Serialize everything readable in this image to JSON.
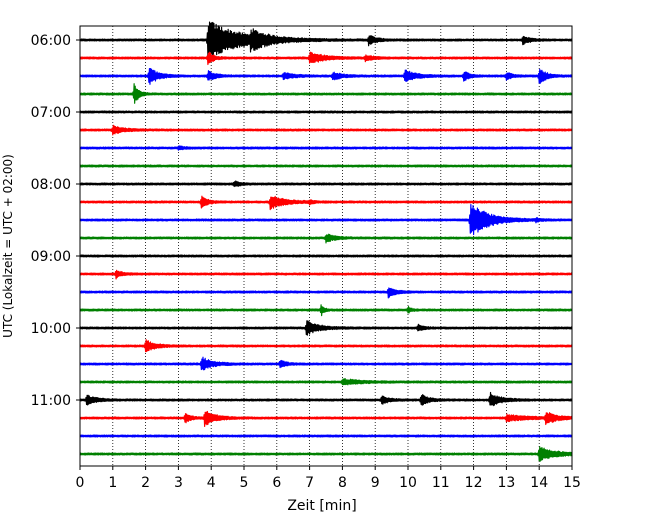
{
  "chart_data": {
    "type": "line",
    "title": "",
    "xlabel": "Zeit  [min]",
    "ylabel": "UTC (Lokalzeit = UTC + 02:00)",
    "xlim": [
      0,
      15
    ],
    "x_ticks": [
      0,
      1,
      2,
      3,
      4,
      5,
      6,
      7,
      8,
      9,
      10,
      11,
      12,
      13,
      14,
      15
    ],
    "x_grid": "vertical dotted",
    "y_tick_labels": [
      "06:00",
      "07:00",
      "08:00",
      "09:00",
      "10:00",
      "11:00"
    ],
    "trace_interval_minutes": 15,
    "trace_colors": [
      "#000000",
      "#ff0000",
      "#0000ff",
      "#008000"
    ],
    "traces": [
      {
        "start": "06:00",
        "events": [
          {
            "t": 3.9,
            "amp": 1.0,
            "dur": 1.8
          },
          {
            "t": 5.2,
            "amp": 0.35,
            "dur": 1.0
          },
          {
            "t": 8.8,
            "amp": 0.25,
            "dur": 0.4
          },
          {
            "t": 13.5,
            "amp": 0.2,
            "dur": 0.4
          }
        ]
      },
      {
        "start": "06:15",
        "events": [
          {
            "t": 3.9,
            "amp": 0.35,
            "dur": 0.3
          },
          {
            "t": 7.0,
            "amp": 0.3,
            "dur": 0.8
          },
          {
            "t": 8.7,
            "amp": 0.15,
            "dur": 0.4
          }
        ]
      },
      {
        "start": "06:30",
        "events": [
          {
            "t": 2.1,
            "amp": 0.45,
            "dur": 0.5
          },
          {
            "t": 3.9,
            "amp": 0.25,
            "dur": 0.4
          },
          {
            "t": 6.2,
            "amp": 0.15,
            "dur": 0.6
          },
          {
            "t": 7.7,
            "amp": 0.2,
            "dur": 0.5
          },
          {
            "t": 9.9,
            "amp": 0.3,
            "dur": 0.6
          },
          {
            "t": 11.7,
            "amp": 0.25,
            "dur": 0.3
          },
          {
            "t": 13.0,
            "amp": 0.2,
            "dur": 0.3
          },
          {
            "t": 14.0,
            "amp": 0.4,
            "dur": 0.4
          }
        ]
      },
      {
        "start": "06:45",
        "events": [
          {
            "t": 1.65,
            "amp": 0.55,
            "dur": 0.25
          }
        ]
      },
      {
        "start": "07:00",
        "events": []
      },
      {
        "start": "07:15",
        "events": [
          {
            "t": 1.0,
            "amp": 0.2,
            "dur": 0.6
          }
        ]
      },
      {
        "start": "07:30",
        "events": [
          {
            "t": 3.0,
            "amp": 0.08,
            "dur": 0.3
          }
        ]
      },
      {
        "start": "07:45",
        "events": []
      },
      {
        "start": "08:00",
        "events": [
          {
            "t": 4.7,
            "amp": 0.15,
            "dur": 0.3
          }
        ]
      },
      {
        "start": "08:15",
        "events": [
          {
            "t": 3.7,
            "amp": 0.35,
            "dur": 0.3
          },
          {
            "t": 5.8,
            "amp": 0.35,
            "dur": 0.8
          },
          {
            "t": 7.0,
            "amp": 0.12,
            "dur": 0.2
          }
        ]
      },
      {
        "start": "08:30",
        "events": [
          {
            "t": 11.9,
            "amp": 0.9,
            "dur": 1.0
          },
          {
            "t": 13.9,
            "amp": 0.08,
            "dur": 0.2
          }
        ]
      },
      {
        "start": "08:45",
        "events": [
          {
            "t": 7.5,
            "amp": 0.2,
            "dur": 0.5
          }
        ]
      },
      {
        "start": "09:00",
        "events": []
      },
      {
        "start": "09:15",
        "events": [
          {
            "t": 1.1,
            "amp": 0.2,
            "dur": 0.3
          }
        ]
      },
      {
        "start": "09:30",
        "events": [
          {
            "t": 9.4,
            "amp": 0.25,
            "dur": 0.4
          }
        ]
      },
      {
        "start": "09:45",
        "events": [
          {
            "t": 7.35,
            "amp": 0.3,
            "dur": 0.15
          },
          {
            "t": 10.0,
            "amp": 0.15,
            "dur": 0.2
          }
        ]
      },
      {
        "start": "10:00",
        "events": [
          {
            "t": 6.9,
            "amp": 0.35,
            "dur": 0.7
          },
          {
            "t": 10.3,
            "amp": 0.15,
            "dur": 0.3
          }
        ]
      },
      {
        "start": "10:15",
        "events": [
          {
            "t": 2.0,
            "amp": 0.3,
            "dur": 0.5
          }
        ]
      },
      {
        "start": "10:30",
        "events": [
          {
            "t": 3.7,
            "amp": 0.35,
            "dur": 0.6
          },
          {
            "t": 6.1,
            "amp": 0.2,
            "dur": 0.3
          }
        ]
      },
      {
        "start": "10:45",
        "events": [
          {
            "t": 8.0,
            "amp": 0.15,
            "dur": 1.0
          }
        ]
      },
      {
        "start": "11:00",
        "events": [
          {
            "t": 0.2,
            "amp": 0.25,
            "dur": 0.5
          },
          {
            "t": 9.2,
            "amp": 0.2,
            "dur": 0.4
          },
          {
            "t": 10.4,
            "amp": 0.3,
            "dur": 0.4
          },
          {
            "t": 12.5,
            "amp": 0.35,
            "dur": 0.6
          }
        ]
      },
      {
        "start": "11:15",
        "events": [
          {
            "t": 3.2,
            "amp": 0.25,
            "dur": 0.3
          },
          {
            "t": 3.8,
            "amp": 0.4,
            "dur": 0.6
          },
          {
            "t": 13.0,
            "amp": 0.15,
            "dur": 1.2
          },
          {
            "t": 14.2,
            "amp": 0.3,
            "dur": 0.6
          }
        ]
      },
      {
        "start": "11:30",
        "events": []
      },
      {
        "start": "11:45",
        "events": [
          {
            "t": 14.0,
            "amp": 0.35,
            "dur": 0.9
          }
        ]
      }
    ]
  }
}
